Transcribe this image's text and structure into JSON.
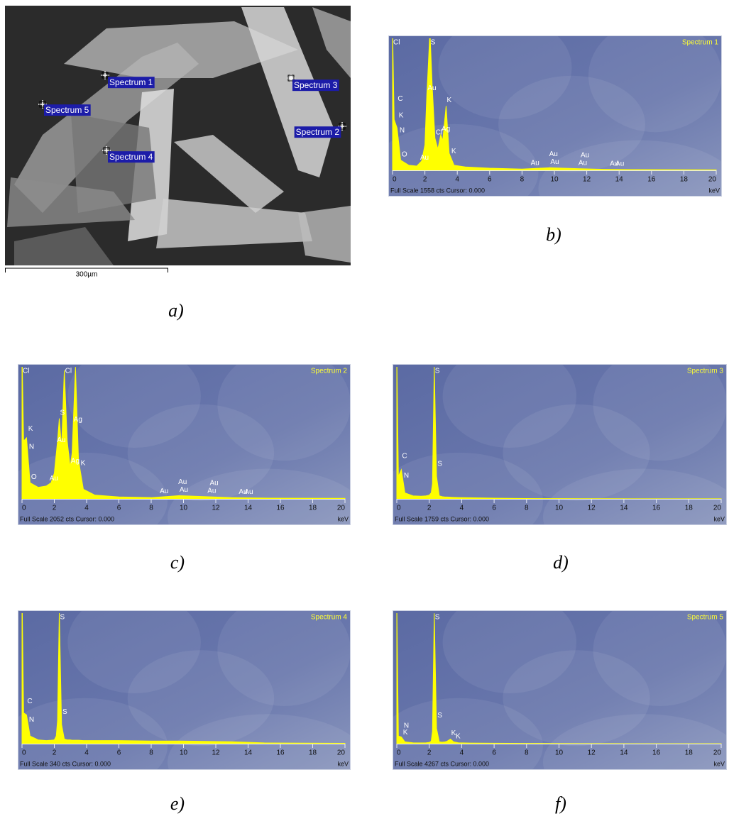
{
  "panel_a": {
    "labels": [
      "Spectrum 1",
      "Spectrum 2",
      "Spectrum 3",
      "Spectrum 4",
      "Spectrum 5"
    ],
    "scale_bar": "300µm",
    "caption": "a)"
  },
  "chart_data": [
    {
      "type": "area",
      "title": "Spectrum 1",
      "footer": "Full Scale 1558 cts Cursor: 0.000",
      "x_unit": "keV",
      "caption": "b)",
      "color": "#ffff00",
      "x": [
        0,
        0.1,
        0.28,
        0.5,
        1,
        1.5,
        1.8,
        2.0,
        2.12,
        2.2,
        2.31,
        2.45,
        2.62,
        2.8,
        2.98,
        3.1,
        3.31,
        3.5,
        3.8,
        4.5,
        6,
        8,
        9.7,
        11.4,
        13,
        15,
        20
      ],
      "values": [
        1700,
        600,
        500,
        120,
        60,
        50,
        110,
        300,
        900,
        1200,
        1650,
        1000,
        380,
        250,
        420,
        350,
        760,
        200,
        60,
        40,
        25,
        15,
        30,
        20,
        12,
        8,
        5
      ],
      "xlim": [
        0,
        20
      ],
      "xticks": [
        0,
        2,
        4,
        6,
        8,
        10,
        12,
        14,
        16,
        18,
        20
      ],
      "ylim": [
        0,
        1558
      ],
      "annotations": [
        {
          "label": "O",
          "x": 0.52
        },
        {
          "label": "N",
          "x": 0.39
        },
        {
          "label": "K",
          "x": 0.34
        },
        {
          "label": "C",
          "x": 0.28
        },
        {
          "label": "Cl",
          "x": 0
        },
        {
          "label": "Au",
          "x": 1.66
        },
        {
          "label": "Au",
          "x": 2.12
        },
        {
          "label": "S",
          "x": 2.31
        },
        {
          "label": "Cl",
          "x": 2.62
        },
        {
          "label": "Ag",
          "x": 2.98
        },
        {
          "label": "K",
          "x": 3.31
        },
        {
          "label": "K",
          "x": 3.59
        },
        {
          "label": "Au",
          "x": 8.49
        },
        {
          "label": "Au",
          "x": 9.71
        },
        {
          "label": "Au",
          "x": 9.63
        },
        {
          "label": "Au",
          "x": 11.44
        },
        {
          "label": "Au",
          "x": 11.58
        },
        {
          "label": "Au",
          "x": 13.38
        },
        {
          "label": "Au",
          "x": 13.73
        }
      ]
    },
    {
      "type": "area",
      "title": "Spectrum 2",
      "footer": "Full Scale 2052 cts Cursor: 0.000",
      "x_unit": "keV",
      "caption": "c)",
      "color": "#ffff00",
      "x": [
        0,
        0.1,
        0.28,
        0.5,
        1,
        1.5,
        1.8,
        2.0,
        2.12,
        2.2,
        2.31,
        2.45,
        2.62,
        2.8,
        2.98,
        3.1,
        3.31,
        3.5,
        3.8,
        4.5,
        6,
        8,
        9.7,
        11.4,
        13,
        15,
        20
      ],
      "values": [
        2300,
        900,
        950,
        250,
        180,
        200,
        250,
        400,
        700,
        900,
        1250,
        800,
        2000,
        900,
        500,
        700,
        2050,
        600,
        150,
        60,
        30,
        20,
        50,
        35,
        20,
        12,
        8
      ],
      "xlim": [
        0,
        20
      ],
      "xticks": [
        0,
        2,
        4,
        6,
        8,
        10,
        12,
        14,
        16,
        18,
        20
      ],
      "ylim": [
        0,
        2052
      ],
      "annotations": [
        {
          "label": "O",
          "x": 0.52
        },
        {
          "label": "N",
          "x": 0.39
        },
        {
          "label": "K",
          "x": 0.34
        },
        {
          "label": "Cl",
          "x": 0
        },
        {
          "label": "Au",
          "x": 1.66
        },
        {
          "label": "Ag",
          "x": 2.98
        },
        {
          "label": "Cl",
          "x": 2.62
        },
        {
          "label": "S",
          "x": 2.31
        },
        {
          "label": "Au",
          "x": 2.12
        },
        {
          "label": "Ag",
          "x": 3.15
        },
        {
          "label": "K",
          "x": 3.59
        },
        {
          "label": "Au",
          "x": 8.49
        },
        {
          "label": "Au",
          "x": 9.71
        },
        {
          "label": "Au",
          "x": 9.63
        },
        {
          "label": "Au",
          "x": 11.44
        },
        {
          "label": "Au",
          "x": 11.58
        },
        {
          "label": "Au",
          "x": 13.38
        },
        {
          "label": "Au",
          "x": 13.73
        }
      ]
    },
    {
      "type": "area",
      "title": "Spectrum 3",
      "footer": "Full Scale 1759 cts Cursor: 0.000",
      "x_unit": "keV",
      "caption": "d)",
      "color": "#ffff00",
      "x": [
        0,
        0.1,
        0.28,
        0.5,
        1,
        1.5,
        1.8,
        2.0,
        2.12,
        2.2,
        2.31,
        2.45,
        2.62,
        2.8,
        2.98,
        3.1,
        3.31,
        3.5,
        3.8,
        4.5,
        6,
        8,
        9.7,
        11.4,
        13,
        15,
        20
      ],
      "values": [
        1900,
        300,
        390,
        80,
        40,
        35,
        40,
        50,
        80,
        200,
        1760,
        300,
        40,
        30,
        25,
        25,
        22,
        20,
        18,
        15,
        10,
        5,
        3,
        2,
        2,
        1,
        1
      ],
      "xlim": [
        0,
        20
      ],
      "xticks": [
        0,
        2,
        4,
        6,
        8,
        10,
        12,
        14,
        16,
        18,
        20
      ],
      "ylim": [
        0,
        1759
      ],
      "annotations": [
        {
          "label": "N",
          "x": 0.39
        },
        {
          "label": "C",
          "x": 0.28
        },
        {
          "label": "S",
          "x": 2.31
        },
        {
          "label": "S",
          "x": 2.46
        }
      ]
    },
    {
      "type": "area",
      "title": "Spectrum 4",
      "footer": "Full Scale 340 cts Cursor: 0.000",
      "x_unit": "keV",
      "caption": "e)",
      "color": "#ffff00",
      "x": [
        0,
        0.1,
        0.28,
        0.5,
        1,
        1.5,
        1.8,
        2.0,
        2.12,
        2.2,
        2.31,
        2.45,
        2.62,
        2.8,
        2.98,
        3.1,
        3.31,
        3.5,
        3.8,
        4.5,
        6,
        8,
        9.7,
        11.4,
        13,
        15,
        20
      ],
      "values": [
        400,
        80,
        75,
        20,
        10,
        8,
        9,
        10,
        20,
        60,
        345,
        50,
        12,
        10,
        10,
        9,
        9,
        9,
        8,
        8,
        8,
        7,
        7,
        6,
        5,
        2,
        1
      ],
      "xlim": [
        0,
        20
      ],
      "xticks": [
        0,
        2,
        4,
        6,
        8,
        10,
        12,
        14,
        16,
        18,
        20
      ],
      "ylim": [
        0,
        340
      ],
      "annotations": [
        {
          "label": "N",
          "x": 0.39
        },
        {
          "label": "C",
          "x": 0.28
        },
        {
          "label": "S",
          "x": 2.31
        },
        {
          "label": "S",
          "x": 2.46
        }
      ]
    },
    {
      "type": "area",
      "title": "Spectrum 5",
      "footer": "Full Scale 4267 cts Cursor: 0.000",
      "x_unit": "keV",
      "caption": "f)",
      "color": "#ffff00",
      "x": [
        0,
        0.1,
        0.28,
        0.5,
        1,
        1.5,
        1.8,
        2.0,
        2.12,
        2.2,
        2.31,
        2.45,
        2.62,
        2.8,
        2.98,
        3.1,
        3.31,
        3.5,
        3.8,
        4.5,
        6,
        8,
        9.7,
        11.4,
        13,
        15,
        20
      ],
      "values": [
        4500,
        250,
        220,
        60,
        30,
        25,
        30,
        40,
        80,
        400,
        4260,
        500,
        60,
        50,
        60,
        80,
        150,
        60,
        30,
        20,
        15,
        10,
        5,
        3,
        2,
        1,
        1
      ],
      "xlim": [
        0,
        20
      ],
      "xticks": [
        0,
        2,
        4,
        6,
        8,
        10,
        12,
        14,
        16,
        18,
        20
      ],
      "ylim": [
        0,
        4267
      ],
      "annotations": [
        {
          "label": "K",
          "x": 0.34
        },
        {
          "label": "N",
          "x": 0.39
        },
        {
          "label": "K",
          "x": 3.59
        },
        {
          "label": "K",
          "x": 3.31
        },
        {
          "label": "S",
          "x": 2.31
        },
        {
          "label": "S",
          "x": 2.46
        }
      ]
    }
  ]
}
